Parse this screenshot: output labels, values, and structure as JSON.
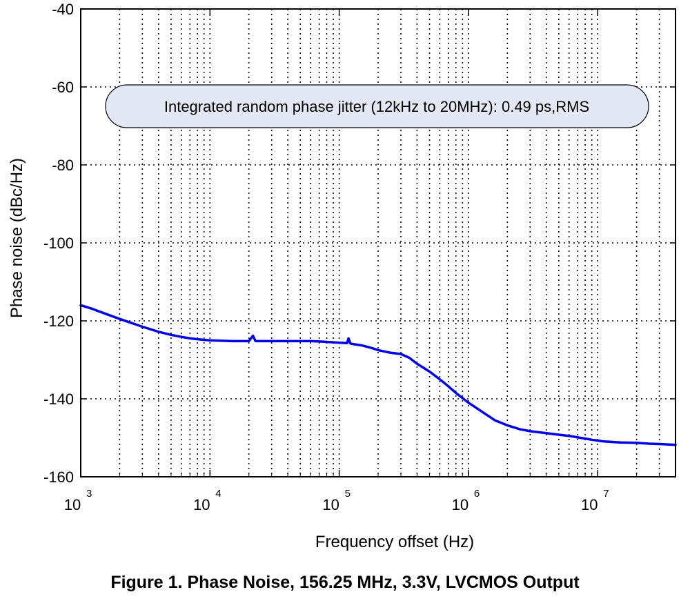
{
  "chart_data": {
    "type": "line",
    "xscale": "log",
    "xlim": [
      1000,
      40000000
    ],
    "ylim": [
      -160,
      -40
    ],
    "xlabel": "Frequency offset (Hz)",
    "ylabel": "Phase noise (dBc/Hz)",
    "y_ticks": [
      -40,
      -60,
      -80,
      -100,
      -120,
      -140,
      -160
    ],
    "x_ticks": [
      {
        "base": "10",
        "exp": "3",
        "value": 1000
      },
      {
        "base": "10",
        "exp": "4",
        "value": 10000
      },
      {
        "base": "10",
        "exp": "5",
        "value": 100000
      },
      {
        "base": "10",
        "exp": "6",
        "value": 1000000
      },
      {
        "base": "10",
        "exp": "7",
        "value": 10000000
      }
    ],
    "grid": true,
    "annotation": "Integrated random phase jitter (12kHz to 20MHz): 0.49 ps,RMS",
    "series": [
      {
        "name": "Phase noise",
        "color": "#0000e6",
        "x": [
          1000,
          1200,
          1500,
          2000,
          3000,
          4000,
          5000,
          6000,
          7000,
          8000,
          10000,
          12000,
          15000,
          20000,
          21500,
          22500,
          25000,
          30000,
          40000,
          50000,
          60000,
          70000,
          80000,
          100000,
          115000,
          118000,
          122000,
          130000,
          150000,
          180000,
          200000,
          250000,
          300000,
          350000,
          400000,
          500000,
          600000,
          700000,
          800000,
          1000000,
          1300000,
          1600000,
          2000000,
          2500000,
          3000000,
          4000000,
          5000000,
          6000000,
          7000000,
          8000000,
          9000000,
          10000000,
          11000000,
          12000000,
          15000000,
          20000000,
          25000000,
          30000000,
          35000000,
          40000000
        ],
        "y": [
          -116,
          -116.8,
          -118,
          -119.5,
          -121.5,
          -122.8,
          -123.6,
          -124.1,
          -124.5,
          -124.7,
          -125,
          -125.1,
          -125.2,
          -125.2,
          -123.8,
          -125.2,
          -125.2,
          -125.2,
          -125.2,
          -125.2,
          -125.2,
          -125.3,
          -125.4,
          -125.6,
          -125.7,
          -124.5,
          -125.8,
          -126,
          -126.3,
          -127,
          -127.5,
          -128.2,
          -128.5,
          -129.5,
          -131,
          -133,
          -135,
          -136.8,
          -138.5,
          -141,
          -143.5,
          -145.5,
          -146.8,
          -147.8,
          -148.3,
          -148.8,
          -149.2,
          -149.5,
          -149.9,
          -150.2,
          -150.5,
          -150.7,
          -150.9,
          -151,
          -151.2,
          -151.3,
          -151.5,
          -151.6,
          -151.7,
          -151.8
        ]
      }
    ]
  },
  "caption": "Figure 1. Phase Noise, 156.25 MHz, 3.3V, LVCMOS Output"
}
